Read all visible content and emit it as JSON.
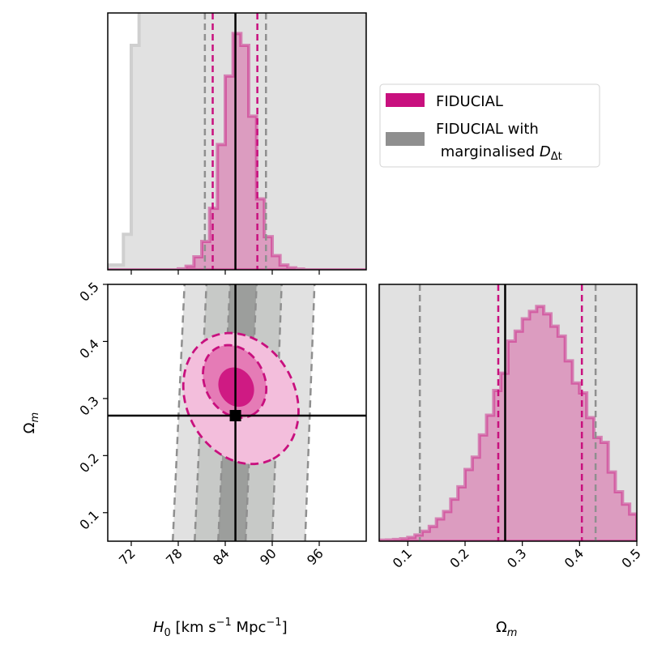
{
  "colors": {
    "fiducial": "#c8107e",
    "fiducial_fill": "#dc9cc0",
    "marg": "#8f8f8f",
    "marg_bg": "#e1e1e1",
    "marg_mid": "#c7c9c7",
    "marg_dark": "#9c9e9c"
  },
  "legend": {
    "fiducial_label": "FIDUCIAL",
    "marg_label_line1": "FIDUCIAL with",
    "marg_label_line2": " marginalised ",
    "marg_label_math": "D",
    "marg_label_sub": "Δt"
  },
  "chart_data": [
    {
      "id": "H0-marginal",
      "type": "histogram",
      "parameter": "H_0",
      "xlim": [
        69,
        102
      ],
      "bin_edges": [
        69,
        70,
        71,
        72,
        73,
        74,
        75,
        76,
        77,
        78,
        79,
        80,
        81,
        82,
        83,
        84,
        85,
        86,
        87,
        88,
        89,
        90,
        91,
        92,
        93,
        94,
        95,
        96,
        97,
        98,
        99,
        100,
        101,
        102
      ],
      "series": [
        {
          "name": "FIDUCIAL",
          "style": "filled step histogram",
          "values": [
            0,
            0,
            0,
            0,
            0,
            0,
            0,
            0,
            0,
            0.004,
            0.015,
            0.055,
            0.12,
            0.26,
            0.53,
            0.82,
            1.0,
            0.95,
            0.65,
            0.3,
            0.14,
            0.06,
            0.02,
            0.008,
            0.003,
            0,
            0,
            0,
            0,
            0,
            0,
            0,
            0
          ]
        },
        {
          "name": "FIDUCIAL with marginalised D_dt",
          "style": "step histogram, off-scale",
          "values": [
            0.02,
            0.02,
            0.15,
            0.95,
            1.1,
            1.2,
            1.2,
            1.2,
            1.2,
            1.2,
            1.2,
            1.2,
            1.2,
            1.2,
            1.2,
            1.2,
            1.2,
            1.2,
            1.2,
            1.2,
            1.2,
            1.2,
            1.2,
            1.2,
            1.2,
            1.2,
            1.2,
            1.2,
            1.2,
            1.2,
            1.2,
            1.2,
            1.2
          ]
        }
      ],
      "fiducial_quantiles": [
        82.4,
        88.1
      ],
      "marg_quantiles": [
        81.4,
        89.2
      ],
      "truth": 85.3
    },
    {
      "id": "H0-Om-joint",
      "type": "contour",
      "xlabel": "H_0 [km s^-1 Mpc^-1]",
      "ylabel": "Omega_m",
      "xlim": [
        69,
        102
      ],
      "ylim": [
        0.05,
        0.5
      ],
      "x_ticks": [
        "72",
        "78",
        "84",
        "90",
        "96"
      ],
      "y_ticks": [
        "0.1",
        "0.2",
        "0.3",
        "0.4",
        "0.5"
      ],
      "truth": [
        85.3,
        0.27
      ],
      "series": [
        {
          "name": "FIDUCIAL",
          "contours": [
            {
              "level": "1-sigma",
              "center": [
                85.2,
                0.33
              ],
              "major_axis_angle_deg": -62,
              "semi_axes": [
                4.1,
                0.052
              ],
              "dashed_boundary": true
            },
            {
              "level": "2-sigma",
              "center": [
                86.0,
                0.3
              ],
              "major_axis_angle_deg": -62,
              "semi_axes": [
                7.4,
                0.095
              ],
              "dashed_boundary": true
            },
            {
              "level": "core",
              "center": [
                85.4,
                0.32
              ],
              "major_axis_angle_deg": -62,
              "semi_axes": [
                2.2,
                0.03
              ],
              "dashed_boundary": false
            }
          ]
        },
        {
          "name": "FIDUCIAL with marginalised D_dt",
          "style": "vertical confidence bands",
          "band_edges_at_Om_0.05": [
            77.3,
            80.1,
            83.1,
            86.6,
            90.0,
            94.2
          ],
          "band_edges_at_Om_0.5": [
            78.8,
            81.6,
            84.6,
            88.0,
            91.2,
            95.4
          ]
        }
      ]
    },
    {
      "id": "Om-marginal",
      "type": "histogram",
      "parameter": "Omega_m",
      "xlabel": "Omega_m",
      "xlim": [
        0.05,
        0.5
      ],
      "x_ticks": [
        "0.1",
        "0.2",
        "0.3",
        "0.4",
        "0.5"
      ],
      "bin_edges": [
        0.05,
        0.0625,
        0.075,
        0.0875,
        0.1,
        0.1125,
        0.125,
        0.1375,
        0.15,
        0.1625,
        0.175,
        0.1875,
        0.2,
        0.2125,
        0.225,
        0.2375,
        0.25,
        0.2625,
        0.275,
        0.2875,
        0.3,
        0.3125,
        0.325,
        0.3375,
        0.35,
        0.3625,
        0.375,
        0.3875,
        0.4,
        0.4125,
        0.425,
        0.4375,
        0.45,
        0.4625,
        0.475,
        0.4875,
        0.5
      ],
      "series": [
        {
          "name": "FIDUCIAL",
          "style": "filled step histogram",
          "values": [
            0.004,
            0.005,
            0.007,
            0.01,
            0.015,
            0.025,
            0.04,
            0.06,
            0.09,
            0.12,
            0.17,
            0.22,
            0.29,
            0.34,
            0.43,
            0.51,
            0.61,
            0.68,
            0.81,
            0.85,
            0.9,
            0.93,
            0.95,
            0.92,
            0.87,
            0.83,
            0.73,
            0.64,
            0.6,
            0.5,
            0.42,
            0.4,
            0.28,
            0.2,
            0.15,
            0.11
          ]
        },
        {
          "name": "FIDUCIAL with marginalised D_dt",
          "style": "step histogram, off-scale",
          "values": [
            1.2,
            1.2,
            1.2,
            1.2,
            1.2,
            1.2,
            1.2,
            1.2,
            1.2,
            1.2,
            1.2,
            1.2,
            1.2,
            1.2,
            1.2,
            1.2,
            1.2,
            1.2,
            1.2,
            1.2,
            1.2,
            1.2,
            1.2,
            1.2,
            1.2,
            1.2,
            1.2,
            1.2,
            1.2,
            1.2,
            1.2,
            1.2,
            1.2,
            1.2,
            1.2,
            1.2
          ]
        }
      ],
      "fiducial_quantiles": [
        0.258,
        0.404
      ],
      "marg_quantiles": [
        0.121,
        0.428
      ],
      "truth": 0.27
    }
  ]
}
